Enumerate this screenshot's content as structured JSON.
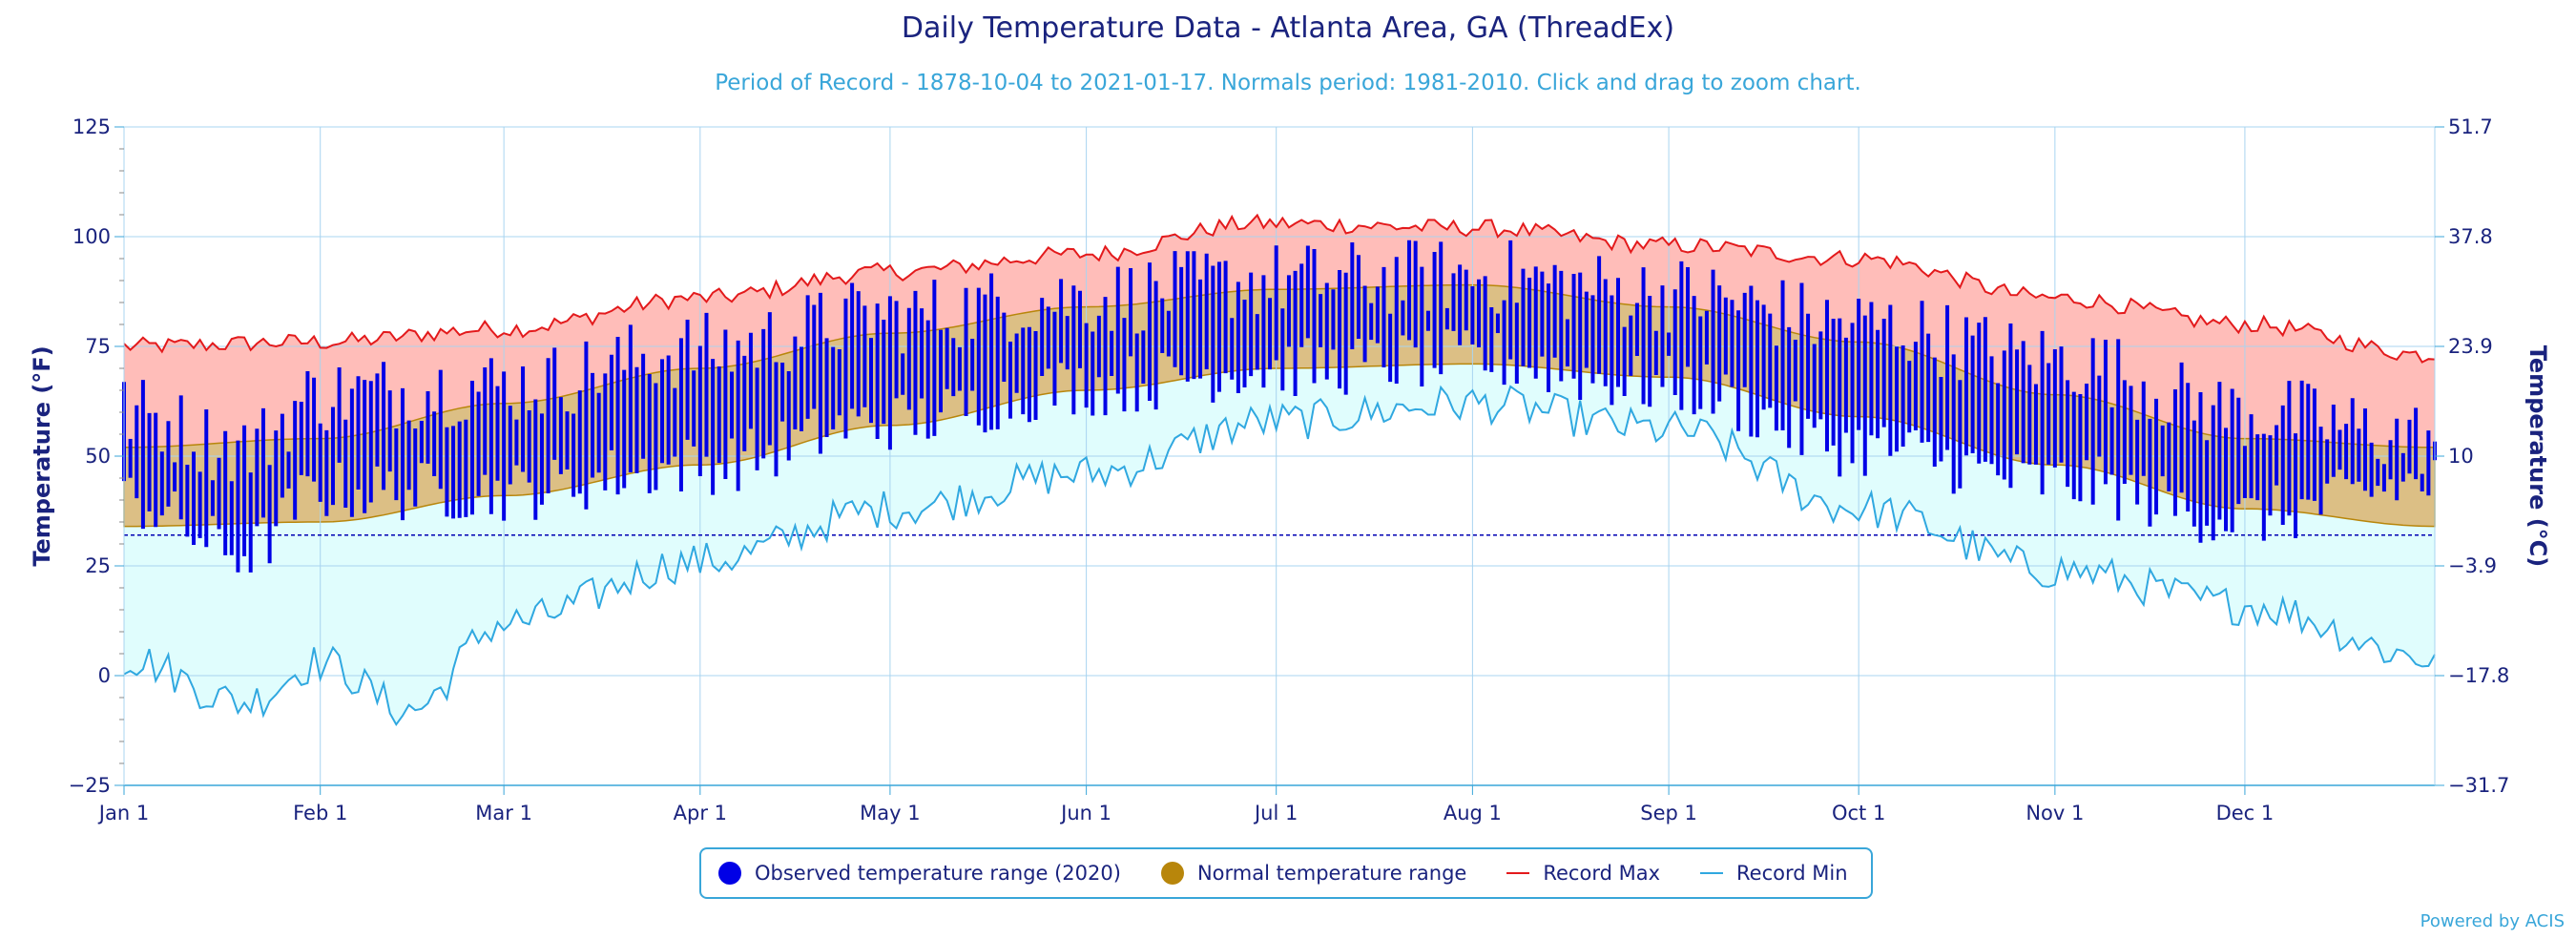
{
  "chart_data": {
    "type": "area",
    "title": "Daily Temperature Data - Atlanta Area, GA (ThreadEx)",
    "subtitle": "Period of Record - 1878-10-04 to 2021-01-17. Normals period: 1981-2010. Click and drag to zoom chart.",
    "ylabel": "Temperature (°F)",
    "ylabel_right": "Temperature (°C)",
    "ylim": [
      -25,
      125
    ],
    "yticks": [
      "125",
      "100",
      "75",
      "50",
      "25",
      "0",
      "−25"
    ],
    "yticks_right": [
      "51.7",
      "37.8",
      "23.9",
      "10",
      "−3.9",
      "−17.8",
      "−31.7"
    ],
    "ytick_values": [
      125,
      100,
      75,
      50,
      25,
      0,
      -25
    ],
    "x_months": [
      "Jan 1",
      "Feb 1",
      "Mar 1",
      "Apr 1",
      "May 1",
      "Jun 1",
      "Jul 1",
      "Aug 1",
      "Sep 1",
      "Oct 1",
      "Nov 1",
      "Dec 1"
    ],
    "x_month_start_days": [
      1,
      32,
      61,
      92,
      122,
      153,
      183,
      214,
      245,
      275,
      306,
      336
    ],
    "days_in_year": 366,
    "freezing_line": 32,
    "grid": true,
    "legend_position": "bottom-center",
    "normal_max_anchors": [
      [
        1,
        52
      ],
      [
        32,
        54
      ],
      [
        61,
        62
      ],
      [
        92,
        70
      ],
      [
        122,
        78
      ],
      [
        153,
        84
      ],
      [
        183,
        88
      ],
      [
        214,
        89
      ],
      [
        245,
        84
      ],
      [
        275,
        76
      ],
      [
        306,
        64
      ],
      [
        336,
        54
      ],
      [
        366,
        52
      ]
    ],
    "normal_min_anchors": [
      [
        1,
        34
      ],
      [
        32,
        35
      ],
      [
        61,
        41
      ],
      [
        92,
        48
      ],
      [
        122,
        57
      ],
      [
        153,
        65
      ],
      [
        183,
        70
      ],
      [
        214,
        71
      ],
      [
        245,
        68
      ],
      [
        275,
        59
      ],
      [
        306,
        48
      ],
      [
        336,
        38
      ],
      [
        366,
        34
      ]
    ],
    "record_max_anchors": [
      [
        1,
        75
      ],
      [
        32,
        76
      ],
      [
        61,
        79
      ],
      [
        92,
        86
      ],
      [
        122,
        92
      ],
      [
        153,
        96
      ],
      [
        180,
        103
      ],
      [
        214,
        102
      ],
      [
        245,
        98
      ],
      [
        275,
        95
      ],
      [
        306,
        86
      ],
      [
        336,
        80
      ],
      [
        366,
        73
      ]
    ],
    "record_min_anchors": [
      [
        1,
        4
      ],
      [
        20,
        -6
      ],
      [
        32,
        3
      ],
      [
        46,
        -8
      ],
      [
        61,
        12
      ],
      [
        92,
        26
      ],
      [
        122,
        38
      ],
      [
        153,
        46
      ],
      [
        183,
        58
      ],
      [
        214,
        62
      ],
      [
        245,
        56
      ],
      [
        275,
        38
      ],
      [
        306,
        24
      ],
      [
        336,
        16
      ],
      [
        366,
        4
      ]
    ],
    "observed_max_anchors": [
      [
        1,
        60
      ],
      [
        20,
        52
      ],
      [
        32,
        64
      ],
      [
        61,
        66
      ],
      [
        92,
        74
      ],
      [
        122,
        82
      ],
      [
        153,
        86
      ],
      [
        183,
        90
      ],
      [
        214,
        91
      ],
      [
        245,
        87
      ],
      [
        275,
        80
      ],
      [
        306,
        72
      ],
      [
        336,
        60
      ],
      [
        366,
        54
      ]
    ],
    "observed_min_anchors": [
      [
        1,
        40
      ],
      [
        20,
        28
      ],
      [
        32,
        42
      ],
      [
        61,
        42
      ],
      [
        92,
        48
      ],
      [
        122,
        58
      ],
      [
        153,
        66
      ],
      [
        183,
        70
      ],
      [
        214,
        72
      ],
      [
        245,
        66
      ],
      [
        275,
        52
      ],
      [
        306,
        44
      ],
      [
        336,
        36
      ],
      [
        366,
        44
      ]
    ],
    "series": [
      {
        "name": "Observed temperature range (2020)",
        "color": "#0000e6"
      },
      {
        "name": "Normal temperature range",
        "color": "#b8860b"
      },
      {
        "name": "Record Max",
        "color": "#e31a1c"
      },
      {
        "name": "Record Min",
        "color": "#30a8e0"
      }
    ]
  },
  "legend": {
    "observed": "Observed temperature range (2020)",
    "normal": "Normal temperature range",
    "record_max": "Record Max",
    "record_min": "Record Min"
  },
  "credit": "Powered by ACIS",
  "colors": {
    "observed": "#0000e6",
    "normal_fill": "#dcbf85",
    "normal_stroke": "#b8860b",
    "record_max_fill": "#ffbdb9",
    "record_max": "#e31a1c",
    "record_min_fill": "#e0fdfd",
    "record_min": "#30a8e0",
    "axis_text": "#1a237e",
    "grid": "#a8d4f0"
  }
}
